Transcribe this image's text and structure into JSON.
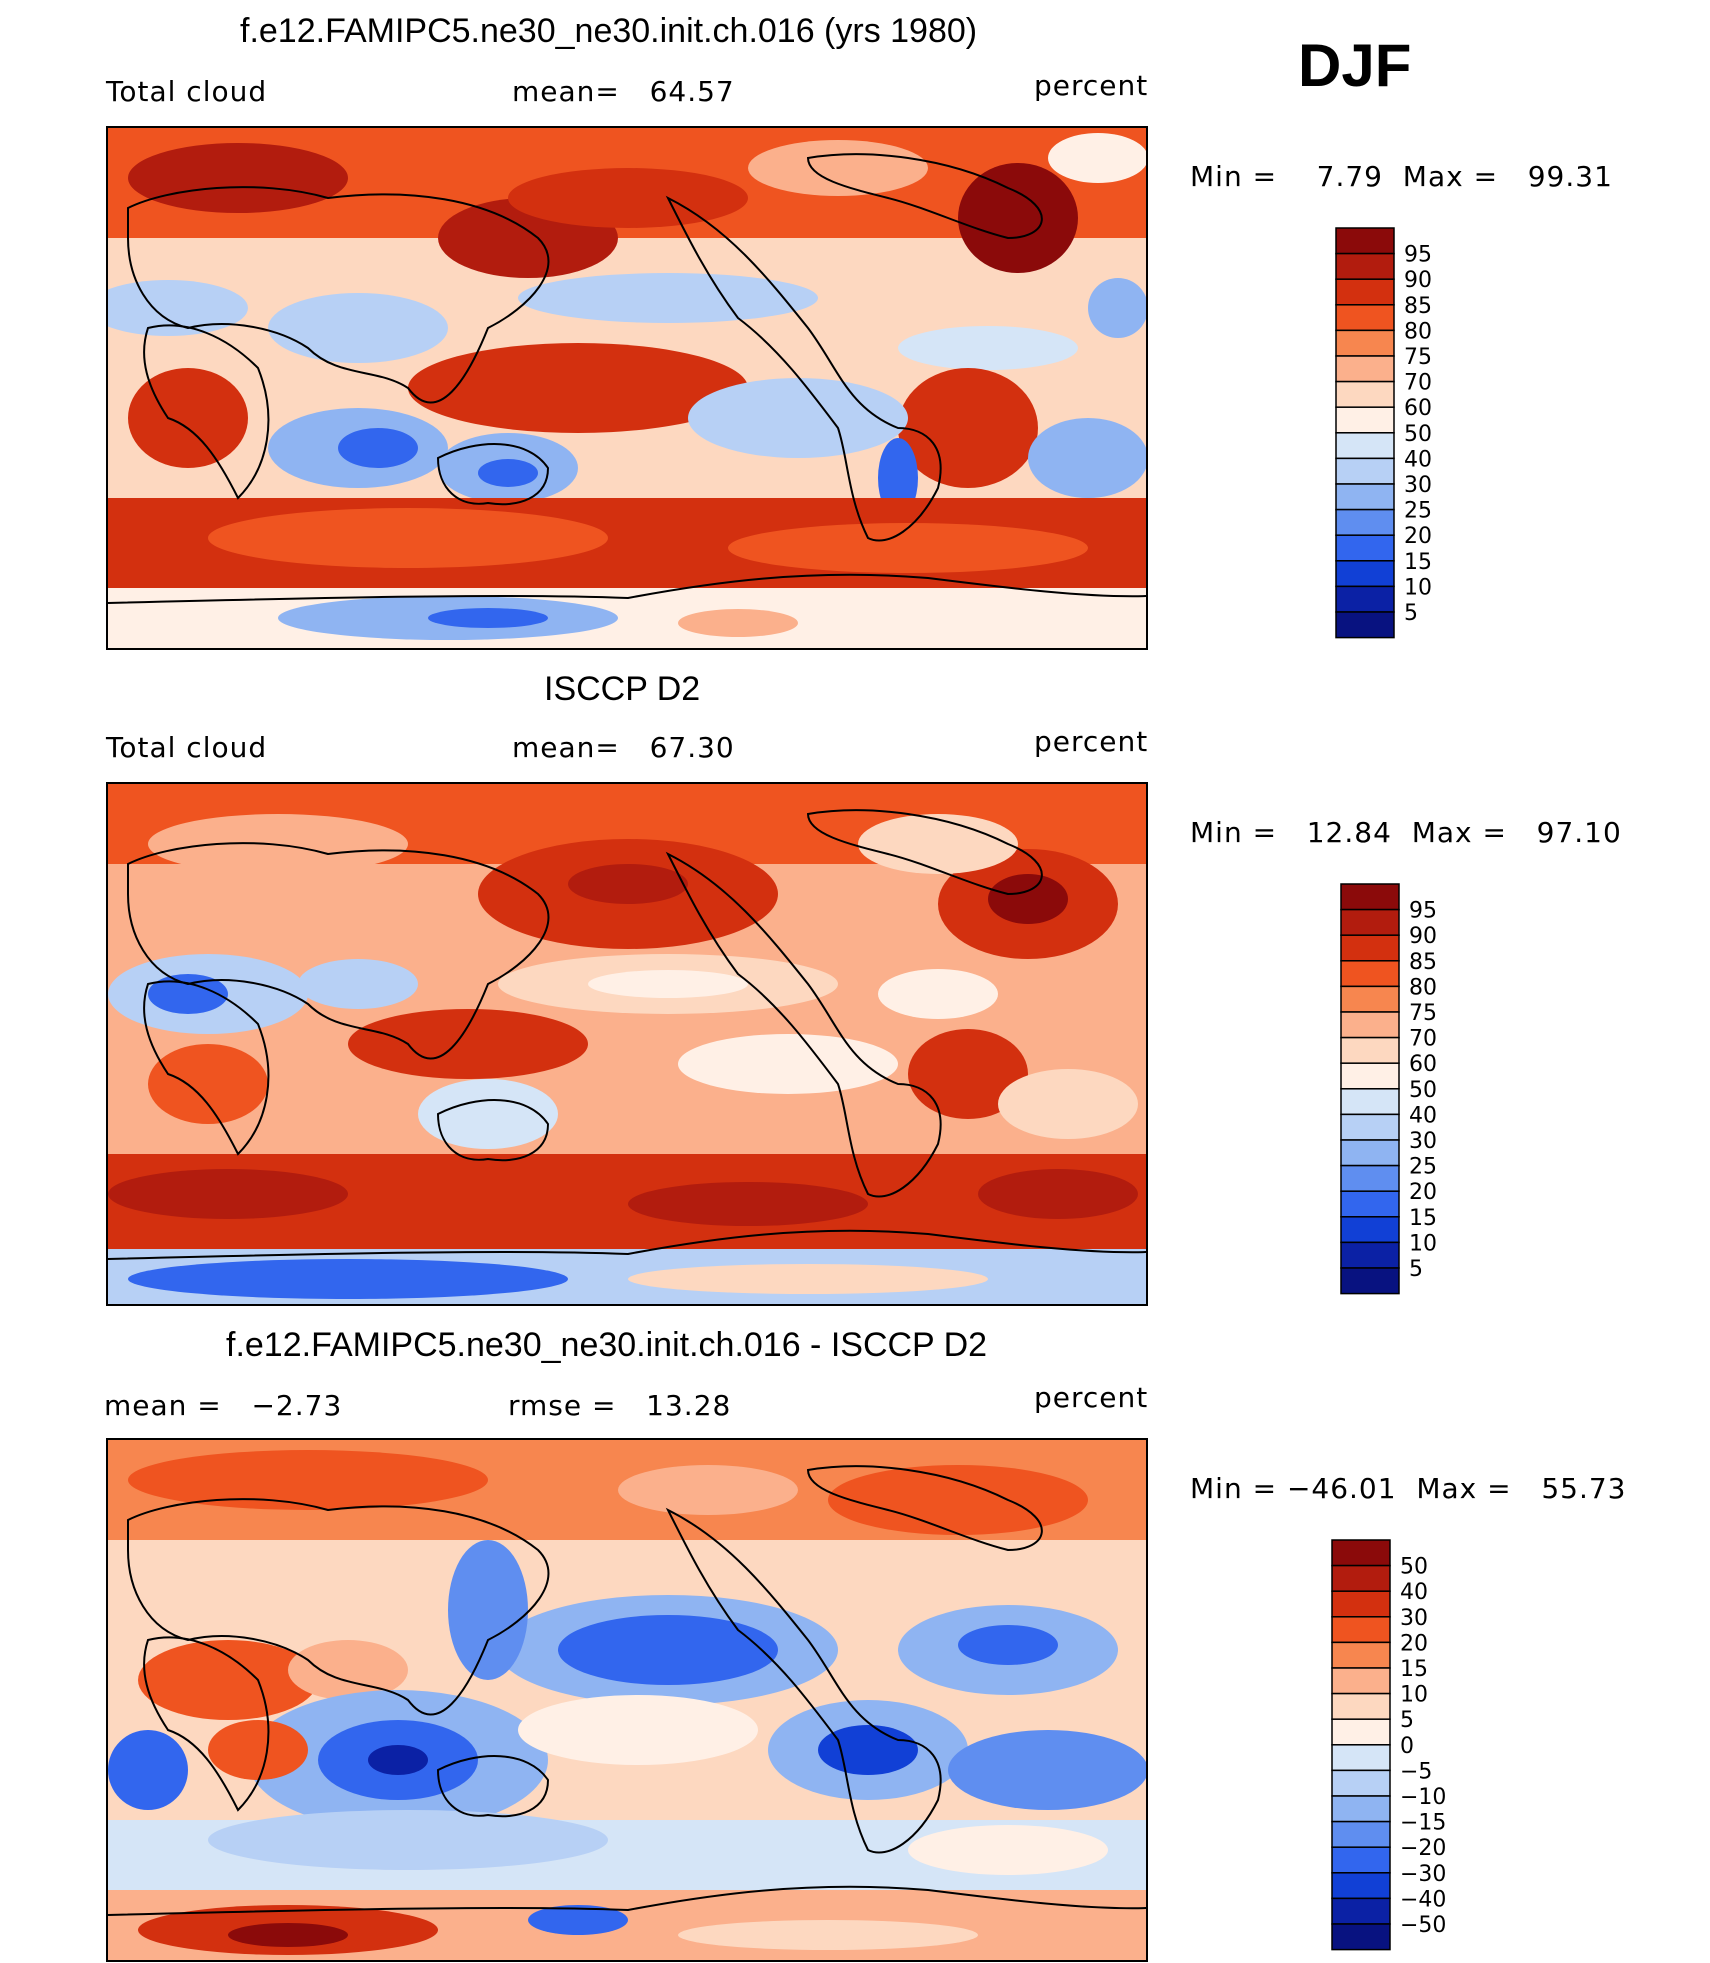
{
  "season": "DJF",
  "chart_data": [
    {
      "type": "heatmap",
      "title": "f.e12.FAMIPC5.ne30_ne30.init.ch.016 (yrs 1980)",
      "left_label": "Total cloud",
      "center_label": "mean=   64.57",
      "units": "percent",
      "mean": 64.57,
      "min_max_text": "Min =    7.79  Max =   99.31",
      "min": 7.79,
      "max": 99.31,
      "colorbar_levels": [
        "95",
        "90",
        "85",
        "80",
        "75",
        "70",
        "60",
        "50",
        "40",
        "30",
        "25",
        "20",
        "15",
        "10",
        "5"
      ],
      "colorbar_colors": [
        "#8b0a0a",
        "#b21c0e",
        "#d3300f",
        "#ef5420",
        "#f7864f",
        "#fbb08c",
        "#fdd8c0",
        "#fff0e6",
        "#d5e5f7",
        "#b7d0f5",
        "#8fb4f2",
        "#5f8ef0",
        "#3266ee",
        "#1140d6",
        "#0b21a5",
        "#081280"
      ]
    },
    {
      "type": "heatmap",
      "title": "ISCCP D2",
      "left_label": "Total cloud",
      "center_label": "mean=   67.30",
      "units": "percent",
      "mean": 67.3,
      "min_max_text": "Min =   12.84  Max =   97.10",
      "min": 12.84,
      "max": 97.1,
      "colorbar_levels": [
        "95",
        "90",
        "85",
        "80",
        "75",
        "70",
        "60",
        "50",
        "40",
        "30",
        "25",
        "20",
        "15",
        "10",
        "5"
      ],
      "colorbar_colors": [
        "#8b0a0a",
        "#b21c0e",
        "#d3300f",
        "#ef5420",
        "#f7864f",
        "#fbb08c",
        "#fdd8c0",
        "#fff0e6",
        "#d5e5f7",
        "#b7d0f5",
        "#8fb4f2",
        "#5f8ef0",
        "#3266ee",
        "#1140d6",
        "#0b21a5",
        "#081280"
      ]
    },
    {
      "type": "heatmap",
      "title": "f.e12.FAMIPC5.ne30_ne30.init.ch.016 - ISCCP D2",
      "left_label": "mean =   −2.73",
      "center_label": "rmse =   13.28",
      "units": "percent",
      "mean": -2.73,
      "rmse": 13.28,
      "min_max_text": "Min = −46.01  Max =   55.73",
      "min": -46.01,
      "max": 55.73,
      "colorbar_levels": [
        "50",
        "40",
        "30",
        "20",
        "15",
        "10",
        "5",
        "0",
        "−5",
        "−10",
        "−15",
        "−20",
        "−30",
        "−40",
        "−50"
      ],
      "colorbar_colors": [
        "#8b0a0a",
        "#b21c0e",
        "#d3300f",
        "#ef5420",
        "#f7864f",
        "#fbb08c",
        "#fdd8c0",
        "#fff0e6",
        "#d5e5f7",
        "#b7d0f5",
        "#8fb4f2",
        "#5f8ef0",
        "#3266ee",
        "#1140d6",
        "#0b21a5",
        "#081280"
      ]
    }
  ]
}
